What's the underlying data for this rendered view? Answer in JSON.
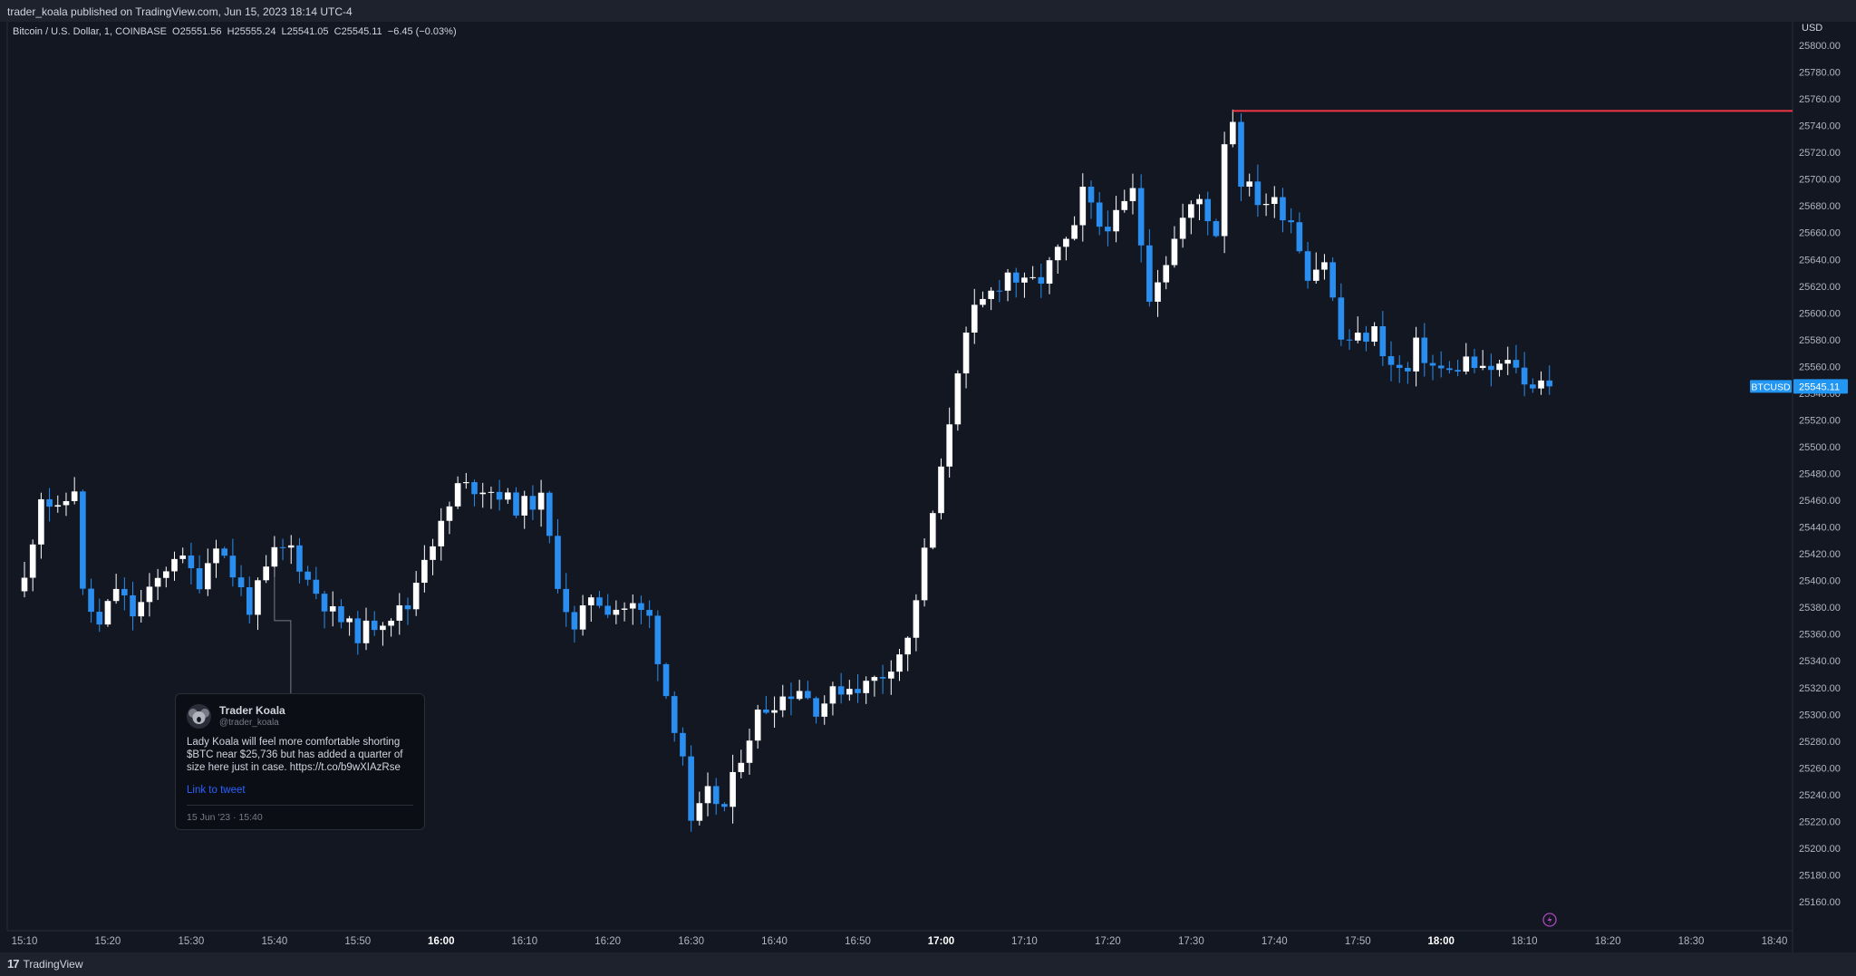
{
  "header": {
    "published": "trader_koala published on TradingView.com, Jun 15, 2023 18:14 UTC-4"
  },
  "legend": "Bitcoin / U.S. Dollar, 1, COINBASE  O25551.56  H25555.24  L25541.05  C25545.11  −6.45 (−0.03%)",
  "footer": {
    "brand": "TradingView"
  },
  "tweet": {
    "name": "Trader Koala",
    "handle": "@trader_koala",
    "text": "Lady Koala will feel more comfortable shorting $BTC near $25,736 but has added a quarter of size here just in case. https://t.co/b9wXIAzRse",
    "link_label": "Link to tweet",
    "date": "15 Jun '23 · 15:40"
  },
  "colors": {
    "background": "#131722",
    "up": "#ffffff",
    "down": "#2a8ef0",
    "level_line": "#f23645",
    "price_tag": "#2196f3"
  },
  "chart_data": {
    "type": "candlestick",
    "symbol": "BTCUSD",
    "interval": "1",
    "exchange": "COINBASE",
    "y_axis_unit": "USD",
    "ylim": [
      25145,
      25815
    ],
    "y_ticks": [
      "25800.00",
      "25780.00",
      "25760.00",
      "25740.00",
      "25720.00",
      "25700.00",
      "25680.00",
      "25660.00",
      "25640.00",
      "25620.00",
      "25600.00",
      "25580.00",
      "25560.00",
      "25540.00",
      "25520.00",
      "25500.00",
      "25480.00",
      "25460.00",
      "25440.00",
      "25420.00",
      "25400.00",
      "25380.00",
      "25360.00",
      "25340.00",
      "25320.00",
      "25300.00",
      "25280.00",
      "25260.00",
      "25240.00",
      "25220.00",
      "25200.00",
      "25180.00",
      "25160.00"
    ],
    "x_ticks": [
      {
        "label": "15:10",
        "bold": false
      },
      {
        "label": "15:20",
        "bold": false
      },
      {
        "label": "15:30",
        "bold": false
      },
      {
        "label": "15:40",
        "bold": false
      },
      {
        "label": "15:50",
        "bold": false
      },
      {
        "label": "16:00",
        "bold": true
      },
      {
        "label": "16:10",
        "bold": false
      },
      {
        "label": "16:20",
        "bold": false
      },
      {
        "label": "16:30",
        "bold": false
      },
      {
        "label": "16:40",
        "bold": false
      },
      {
        "label": "16:50",
        "bold": false
      },
      {
        "label": "17:00",
        "bold": true
      },
      {
        "label": "17:10",
        "bold": false
      },
      {
        "label": "17:20",
        "bold": false
      },
      {
        "label": "17:30",
        "bold": false
      },
      {
        "label": "17:40",
        "bold": false
      },
      {
        "label": "17:50",
        "bold": false
      },
      {
        "label": "18:00",
        "bold": true
      },
      {
        "label": "18:10",
        "bold": false
      },
      {
        "label": "18:20",
        "bold": false
      },
      {
        "label": "18:30",
        "bold": false
      },
      {
        "label": "18:40",
        "bold": false
      }
    ],
    "time_range": [
      "15:10",
      "18:40"
    ],
    "first_candle": "15:10",
    "last_price": 25545.11,
    "last_price_label": "25545.11",
    "level_line": {
      "price": 25751,
      "from": "17:35"
    },
    "tweet_marker_time": "15:40",
    "close_anchors": [
      {
        "t": "15:10",
        "c": 25400
      },
      {
        "t": "15:12",
        "c": 25465
      },
      {
        "t": "15:14",
        "c": 25450
      },
      {
        "t": "15:16",
        "c": 25470
      },
      {
        "t": "15:17",
        "c": 25390
      },
      {
        "t": "15:19",
        "c": 25365
      },
      {
        "t": "15:21",
        "c": 25395
      },
      {
        "t": "15:23",
        "c": 25375
      },
      {
        "t": "15:25",
        "c": 25390
      },
      {
        "t": "15:28",
        "c": 25420
      },
      {
        "t": "15:31",
        "c": 25400
      },
      {
        "t": "15:33",
        "c": 25430
      },
      {
        "t": "15:35",
        "c": 25405
      },
      {
        "t": "15:37",
        "c": 25380
      },
      {
        "t": "15:40",
        "c": 25420
      },
      {
        "t": "15:42",
        "c": 25425
      },
      {
        "t": "15:44",
        "c": 25400
      },
      {
        "t": "15:47",
        "c": 25375
      },
      {
        "t": "15:50",
        "c": 25360
      },
      {
        "t": "15:53",
        "c": 25372
      },
      {
        "t": "15:56",
        "c": 25380
      },
      {
        "t": "15:58",
        "c": 25420
      },
      {
        "t": "16:00",
        "c": 25440
      },
      {
        "t": "16:02",
        "c": 25470
      },
      {
        "t": "16:05",
        "c": 25470
      },
      {
        "t": "16:07",
        "c": 25465
      },
      {
        "t": "16:09",
        "c": 25455
      },
      {
        "t": "16:12",
        "c": 25460
      },
      {
        "t": "16:14",
        "c": 25400
      },
      {
        "t": "16:16",
        "c": 25360
      },
      {
        "t": "16:18",
        "c": 25390
      },
      {
        "t": "16:20",
        "c": 25380
      },
      {
        "t": "16:23",
        "c": 25380
      },
      {
        "t": "16:25",
        "c": 25372
      },
      {
        "t": "16:27",
        "c": 25315
      },
      {
        "t": "16:29",
        "c": 25270
      },
      {
        "t": "16:30",
        "c": 25215
      },
      {
        "t": "16:32",
        "c": 25240
      },
      {
        "t": "16:34",
        "c": 25230
      },
      {
        "t": "16:36",
        "c": 25270
      },
      {
        "t": "16:38",
        "c": 25300
      },
      {
        "t": "16:40",
        "c": 25310
      },
      {
        "t": "16:43",
        "c": 25320
      },
      {
        "t": "16:45",
        "c": 25305
      },
      {
        "t": "16:48",
        "c": 25320
      },
      {
        "t": "16:51",
        "c": 25322
      },
      {
        "t": "16:53",
        "c": 25330
      },
      {
        "t": "16:56",
        "c": 25355
      },
      {
        "t": "16:58",
        "c": 25420
      },
      {
        "t": "17:00",
        "c": 25480
      },
      {
        "t": "17:02",
        "c": 25560
      },
      {
        "t": "17:04",
        "c": 25600
      },
      {
        "t": "17:06",
        "c": 25615
      },
      {
        "t": "17:08",
        "c": 25630
      },
      {
        "t": "17:10",
        "c": 25620
      },
      {
        "t": "17:12",
        "c": 25625
      },
      {
        "t": "17:14",
        "c": 25645
      },
      {
        "t": "17:16",
        "c": 25660
      },
      {
        "t": "17:17",
        "c": 25690
      },
      {
        "t": "17:19",
        "c": 25665
      },
      {
        "t": "17:21",
        "c": 25670
      },
      {
        "t": "17:23",
        "c": 25690
      },
      {
        "t": "17:25",
        "c": 25615
      },
      {
        "t": "17:27",
        "c": 25640
      },
      {
        "t": "17:29",
        "c": 25670
      },
      {
        "t": "17:31",
        "c": 25685
      },
      {
        "t": "17:33",
        "c": 25660
      },
      {
        "t": "17:34",
        "c": 25730
      },
      {
        "t": "17:35",
        "c": 25745
      },
      {
        "t": "17:36",
        "c": 25700
      },
      {
        "t": "17:38",
        "c": 25685
      },
      {
        "t": "17:40",
        "c": 25682
      },
      {
        "t": "17:42",
        "c": 25670
      },
      {
        "t": "17:44",
        "c": 25630
      },
      {
        "t": "17:46",
        "c": 25640
      },
      {
        "t": "17:48",
        "c": 25580
      },
      {
        "t": "17:50",
        "c": 25580
      },
      {
        "t": "17:52",
        "c": 25586
      },
      {
        "t": "17:54",
        "c": 25560
      },
      {
        "t": "17:56",
        "c": 25555
      },
      {
        "t": "17:57",
        "c": 25575
      },
      {
        "t": "17:59",
        "c": 25560
      },
      {
        "t": "18:01",
        "c": 25555
      },
      {
        "t": "18:03",
        "c": 25565
      },
      {
        "t": "18:05",
        "c": 25555
      },
      {
        "t": "18:07",
        "c": 25560
      },
      {
        "t": "18:09",
        "c": 25562
      },
      {
        "t": "18:10",
        "c": 25545
      },
      {
        "t": "18:12",
        "c": 25552
      },
      {
        "t": "18:13",
        "c": 25545
      }
    ]
  }
}
